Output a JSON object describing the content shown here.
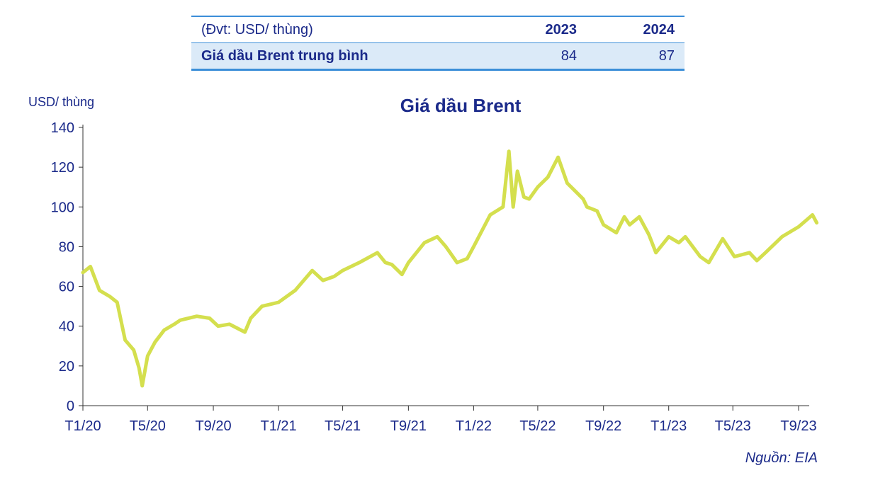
{
  "table": {
    "unit_label": "(Đvt: USD/ thùng)",
    "year_1": "2023",
    "year_2": "2024",
    "row_label": "Giá dầu Brent trung bình",
    "value_1": "84",
    "value_2": "87"
  },
  "chart_data": {
    "type": "line",
    "title": "Giá dầu Brent",
    "ylabel": "USD/ thùng",
    "xlabel": "",
    "source": "Nguồn: EIA",
    "ylim": [
      0,
      140
    ],
    "yticks": [
      0,
      20,
      40,
      60,
      80,
      100,
      120,
      140
    ],
    "xticks": [
      "T1/20",
      "T5/20",
      "T9/20",
      "T1/21",
      "T5/21",
      "T9/21",
      "T1/22",
      "T5/22",
      "T9/22",
      "T1/23",
      "T5/23",
      "T9/23"
    ],
    "line_color": "#d4df4e",
    "series": [
      {
        "x": [
          "2020-01-01",
          "2020-01-15",
          "2020-02-01",
          "2020-02-20",
          "2020-03-05",
          "2020-03-20",
          "2020-04-05",
          "2020-04-15",
          "2020-04-21",
          "2020-05-01",
          "2020-05-15",
          "2020-06-01",
          "2020-06-20",
          "2020-07-01",
          "2020-08-01",
          "2020-08-25",
          "2020-09-10",
          "2020-10-01",
          "2020-10-30",
          "2020-11-10",
          "2020-12-01",
          "2021-01-01",
          "2021-02-01",
          "2021-03-05",
          "2021-03-25",
          "2021-04-15",
          "2021-05-01",
          "2021-06-01",
          "2021-07-05",
          "2021-07-20",
          "2021-08-01",
          "2021-08-20",
          "2021-09-01",
          "2021-10-01",
          "2021-10-25",
          "2021-11-10",
          "2021-12-01",
          "2021-12-20",
          "2022-01-01",
          "2022-02-01",
          "2022-02-25",
          "2022-03-08",
          "2022-03-16",
          "2022-03-24",
          "2022-04-05",
          "2022-04-15",
          "2022-05-01",
          "2022-05-20",
          "2022-06-08",
          "2022-06-25",
          "2022-07-10",
          "2022-07-25",
          "2022-08-01",
          "2022-08-20",
          "2022-09-01",
          "2022-09-25",
          "2022-10-10",
          "2022-10-20",
          "2022-11-07",
          "2022-11-25",
          "2022-12-08",
          "2023-01-01",
          "2023-01-20",
          "2023-02-01",
          "2023-03-01",
          "2023-03-17",
          "2023-04-12",
          "2023-05-04",
          "2023-06-01",
          "2023-06-15",
          "2023-07-01",
          "2023-08-01",
          "2023-09-01",
          "2023-09-27",
          "2023-10-05"
        ],
        "y": [
          67,
          70,
          58,
          55,
          52,
          33,
          28,
          19,
          10,
          25,
          32,
          38,
          41,
          43,
          45,
          44,
          40,
          41,
          37,
          44,
          50,
          52,
          58,
          68,
          63,
          65,
          68,
          72,
          77,
          72,
          71,
          66,
          72,
          82,
          85,
          80,
          72,
          74,
          80,
          96,
          100,
          128,
          100,
          118,
          105,
          104,
          110,
          115,
          125,
          112,
          108,
          104,
          100,
          98,
          91,
          87,
          95,
          91,
          95,
          86,
          77,
          85,
          82,
          85,
          75,
          72,
          84,
          75,
          77,
          73,
          77,
          85,
          90,
          96,
          92
        ]
      }
    ]
  }
}
